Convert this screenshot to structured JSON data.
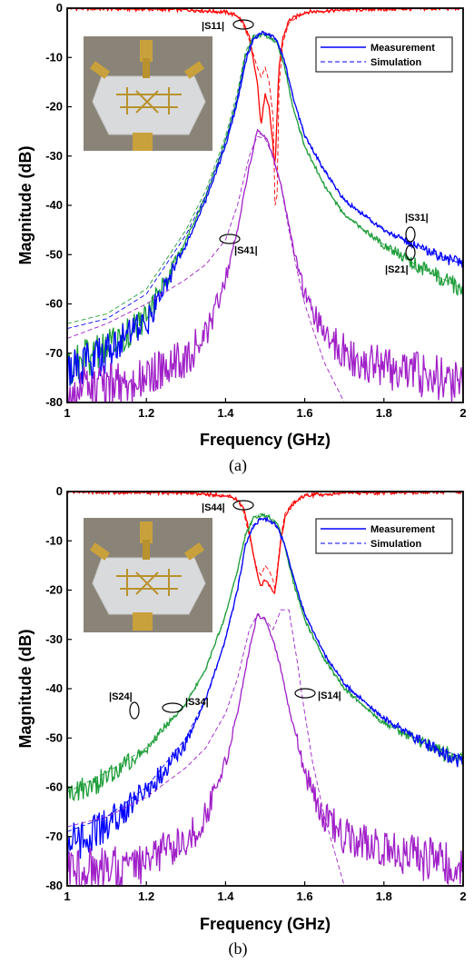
{
  "chart_data": [
    {
      "type": "line",
      "caption": "(a)",
      "xlabel": "Frequency (GHz)",
      "ylabel": "Magnitude (dB)",
      "xlim": [
        1,
        2
      ],
      "ylim": [
        -80,
        0
      ],
      "xticks": [
        "1",
        "1.2",
        "1.4",
        "1.6",
        "1.8",
        "2"
      ],
      "yticks": [
        "0",
        "-10",
        "-20",
        "-30",
        "-40",
        "-50",
        "-60",
        "-70",
        "-80"
      ],
      "legend": {
        "position": "top-right",
        "entries": [
          "Measurement",
          "Simulation"
        ]
      },
      "annotations": [
        {
          "text": "|S11|",
          "x": 1.44,
          "y": -4
        },
        {
          "text": "|S41|",
          "x": 1.42,
          "y": -47
        },
        {
          "text": "|S31|",
          "x": 1.87,
          "y": -45.5
        },
        {
          "text": "|S21|",
          "x": 1.87,
          "y": -49.5
        }
      ],
      "series": [
        {
          "name": "|S11|",
          "color": "#ff0000",
          "x": [
            1.0,
            1.3,
            1.4,
            1.43,
            1.445,
            1.46,
            1.48,
            1.49,
            1.5,
            1.51,
            1.52,
            1.525,
            1.53,
            1.535,
            1.545,
            1.56,
            1.6,
            1.7,
            2.0
          ],
          "measurement": [
            0,
            -0.3,
            -0.8,
            -1.5,
            -3,
            -6,
            -15,
            -24,
            -17,
            -20,
            -28,
            -33,
            -22,
            -12,
            -6,
            -2.5,
            -0.8,
            -0.3,
            0
          ],
          "simulation": [
            0,
            -0.3,
            -0.8,
            -1.6,
            -3.5,
            -6.5,
            -12,
            -14,
            -12,
            -15,
            -22,
            -40,
            -38,
            -16,
            -7,
            -3,
            -0.9,
            -0.3,
            0
          ]
        },
        {
          "name": "|S21|",
          "color": "#1f9e3a",
          "x": [
            1.0,
            1.1,
            1.2,
            1.3,
            1.35,
            1.4,
            1.43,
            1.45,
            1.47,
            1.49,
            1.51,
            1.53,
            1.55,
            1.57,
            1.6,
            1.65,
            1.7,
            1.8,
            1.9,
            2.0
          ],
          "measurement": [
            -73,
            -69,
            -63,
            -47,
            -38,
            -27,
            -18,
            -10,
            -6,
            -5.5,
            -5.8,
            -7,
            -12,
            -20,
            -28,
            -36,
            -42,
            -48,
            -53,
            -57
          ],
          "simulation": [
            -64,
            -62,
            -57,
            -45,
            -37,
            -26,
            -17,
            -9,
            -5.5,
            -5.2,
            -5.6,
            -7,
            -12,
            -20,
            -28,
            -36,
            -42,
            -48,
            -53,
            -57
          ]
        },
        {
          "name": "|S31|",
          "color": "#0000ff",
          "x": [
            1.0,
            1.1,
            1.2,
            1.3,
            1.35,
            1.4,
            1.43,
            1.45,
            1.47,
            1.49,
            1.51,
            1.53,
            1.55,
            1.57,
            1.6,
            1.65,
            1.7,
            1.8,
            1.9,
            2.0
          ],
          "measurement": [
            -74,
            -70,
            -64,
            -48,
            -39,
            -28,
            -19,
            -11,
            -6.5,
            -5,
            -5.3,
            -6.5,
            -11,
            -18,
            -26,
            -33,
            -39,
            -45,
            -49,
            -52
          ],
          "simulation": [
            -65,
            -63,
            -58,
            -46,
            -38,
            -27,
            -18,
            -10,
            -6,
            -4.8,
            -5.1,
            -6.5,
            -11,
            -18,
            -26,
            -33,
            -39,
            -45,
            -49,
            -52
          ]
        },
        {
          "name": "|S41|",
          "color": "#a020c8",
          "x": [
            1.0,
            1.1,
            1.2,
            1.3,
            1.35,
            1.4,
            1.43,
            1.46,
            1.48,
            1.5,
            1.52,
            1.54,
            1.56,
            1.58,
            1.6,
            1.62,
            1.65,
            1.7,
            1.8,
            2.0
          ],
          "measurement": [
            -78,
            -77,
            -75,
            -71,
            -66,
            -55,
            -45,
            -32,
            -25,
            -26,
            -30,
            -36,
            -44,
            -52,
            -58,
            -62,
            -66,
            -70,
            -73,
            -76
          ],
          "simulation": [
            -67,
            -64,
            -60,
            -55,
            -52,
            -47,
            -40,
            -30,
            -26,
            -26.5,
            -30,
            -36,
            -45,
            -53,
            -60,
            -65,
            -72,
            -80,
            -80,
            -80
          ]
        }
      ]
    },
    {
      "type": "line",
      "caption": "(b)",
      "xlabel": "Frequency (GHz)",
      "ylabel": "Magnitude (dB)",
      "xlim": [
        1,
        2
      ],
      "ylim": [
        -80,
        0
      ],
      "xticks": [
        "1",
        "1.2",
        "1.4",
        "1.6",
        "1.8",
        "2"
      ],
      "yticks": [
        "0",
        "-10",
        "-20",
        "-30",
        "-40",
        "-50",
        "-60",
        "-70",
        "-80"
      ],
      "legend": {
        "position": "top-right",
        "entries": [
          "Measurement",
          "Simulation"
        ]
      },
      "annotations": [
        {
          "text": "|S44|",
          "x": 1.44,
          "y": -3.5
        },
        {
          "text": "|S24|",
          "x": 1.18,
          "y": -55.5
        },
        {
          "text": "|S34|",
          "x": 1.27,
          "y": -55
        },
        {
          "text": "|S14|",
          "x": 1.6,
          "y": -50
        }
      ],
      "series": [
        {
          "name": "|S44|",
          "color": "#ff0000",
          "x": [
            1.0,
            1.3,
            1.4,
            1.43,
            1.445,
            1.46,
            1.48,
            1.49,
            1.5,
            1.51,
            1.52,
            1.525,
            1.53,
            1.54,
            1.55,
            1.57,
            1.6,
            1.7,
            2.0
          ],
          "measurement": [
            0,
            -0.3,
            -0.8,
            -1.6,
            -3.5,
            -8,
            -17,
            -19,
            -18,
            -19,
            -20,
            -20.5,
            -17,
            -10,
            -5,
            -2.5,
            -0.8,
            -0.3,
            0
          ],
          "simulation": [
            0,
            -0.3,
            -0.8,
            -1.8,
            -4,
            -9,
            -16,
            -17,
            -15,
            -16,
            -18,
            -20,
            -16,
            -9,
            -4.5,
            -2.2,
            -0.8,
            -0.3,
            0
          ]
        },
        {
          "name": "|S24|",
          "color": "#1f9e3a",
          "x": [
            1.0,
            1.1,
            1.2,
            1.3,
            1.35,
            1.4,
            1.43,
            1.45,
            1.47,
            1.49,
            1.51,
            1.53,
            1.55,
            1.57,
            1.6,
            1.65,
            1.7,
            1.8,
            1.9,
            2.0
          ],
          "measurement": [
            -62,
            -58,
            -52,
            -43,
            -36,
            -25,
            -16,
            -9,
            -5.5,
            -4.8,
            -5.2,
            -6.5,
            -11,
            -18,
            -26,
            -34,
            -40,
            -47,
            -51,
            -55
          ],
          "simulation": [
            -61,
            -57,
            -52,
            -43,
            -36,
            -25,
            -16,
            -9,
            -5.2,
            -4.5,
            -5,
            -6.3,
            -11,
            -18,
            -26,
            -34,
            -40,
            -47,
            -51,
            -54
          ]
        },
        {
          "name": "|S34|",
          "color": "#0000ff",
          "x": [
            1.0,
            1.1,
            1.2,
            1.3,
            1.35,
            1.4,
            1.43,
            1.45,
            1.47,
            1.49,
            1.51,
            1.53,
            1.55,
            1.57,
            1.6,
            1.65,
            1.7,
            1.8,
            1.9,
            2.0
          ],
          "measurement": [
            -72,
            -68,
            -61,
            -51,
            -42,
            -30,
            -20,
            -11,
            -7,
            -5.5,
            -5.8,
            -7,
            -11,
            -17,
            -25,
            -33,
            -39,
            -46,
            -51,
            -55
          ],
          "simulation": [
            -69,
            -66,
            -60,
            -50,
            -42,
            -30,
            -20,
            -11,
            -6.8,
            -5.3,
            -5.6,
            -7,
            -11,
            -17,
            -25,
            -33,
            -39,
            -46,
            -51,
            -54
          ]
        },
        {
          "name": "|S14|",
          "color": "#a020c8",
          "x": [
            1.0,
            1.1,
            1.2,
            1.3,
            1.35,
            1.4,
            1.43,
            1.46,
            1.48,
            1.5,
            1.52,
            1.54,
            1.56,
            1.58,
            1.6,
            1.62,
            1.65,
            1.7,
            1.8,
            2.0
          ],
          "measurement": [
            -78,
            -77,
            -75,
            -71,
            -66,
            -55,
            -45,
            -32,
            -25,
            -26,
            -30,
            -36,
            -44,
            -50,
            -57,
            -61,
            -66,
            -70,
            -73,
            -76
          ],
          "simulation": [
            -68,
            -66,
            -62,
            -56,
            -52,
            -45,
            -38,
            -28,
            -25,
            -26,
            -28,
            -24,
            -24,
            -34,
            -45,
            -55,
            -66,
            -80,
            -80,
            -80
          ]
        }
      ]
    }
  ]
}
